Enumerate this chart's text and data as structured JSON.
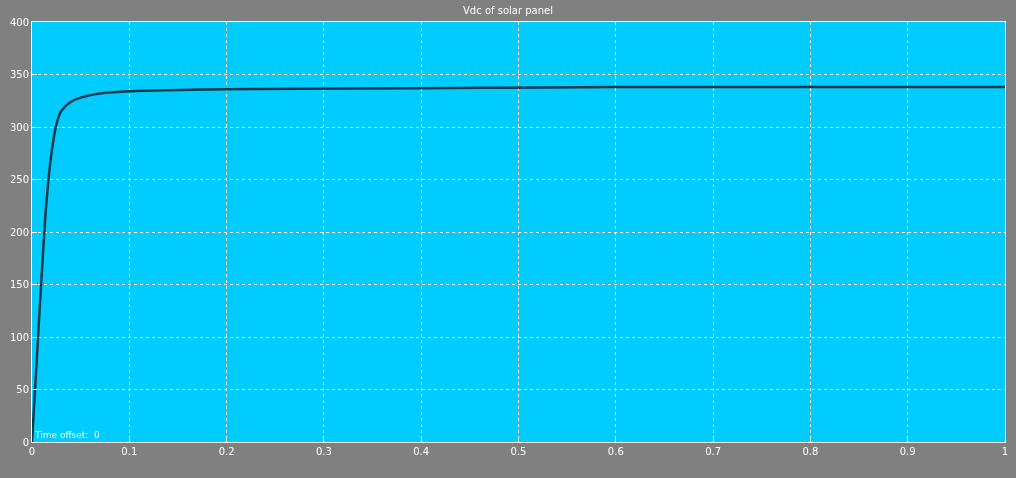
{
  "chart_data": {
    "type": "line",
    "title": "Vdc of solar panel",
    "x": [
      0,
      0.005,
      0.01,
      0.015,
      0.02,
      0.025,
      0.03,
      0.04,
      0.05,
      0.07,
      0.1,
      0.2,
      0.4,
      0.6,
      1
    ],
    "series": [
      {
        "color": "#12394a",
        "values": [
          0,
          80,
          160,
          230,
          275,
          302,
          315,
          324,
          328,
          332,
          334,
          336,
          337,
          338,
          338
        ]
      }
    ],
    "xlim": [
      0,
      1
    ],
    "xticks": [
      0,
      0.1,
      0.2,
      0.3,
      0.4,
      0.5,
      0.6,
      0.7,
      0.8,
      0.9,
      1
    ],
    "ylim": [
      0,
      400
    ],
    "yticks": [
      0,
      50,
      100,
      150,
      200,
      250,
      300,
      350,
      400
    ],
    "grid": true,
    "line_style": "solid",
    "marker": "none",
    "annotations": [
      "Time offset:  0"
    ]
  }
}
